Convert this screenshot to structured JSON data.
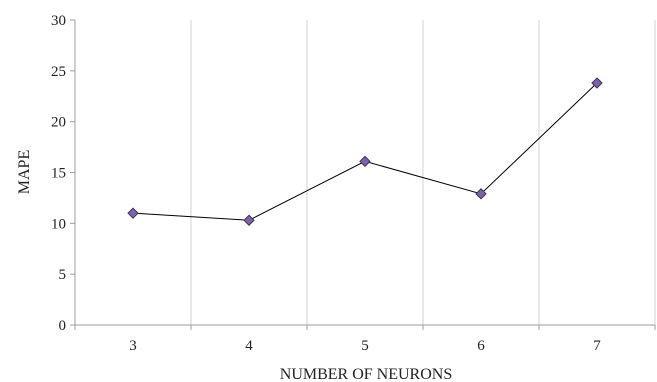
{
  "chart_data": {
    "type": "line",
    "title": "",
    "xlabel": "NUMBER OF NEURONS",
    "ylabel": "MAPE",
    "categories": [
      "3",
      "4",
      "5",
      "6",
      "7"
    ],
    "series": [
      {
        "values": [
          11.0,
          10.3,
          16.1,
          12.9,
          23.8
        ]
      }
    ],
    "ylim": [
      0,
      30
    ],
    "yticks": [
      "0",
      "5",
      "10",
      "15",
      "20",
      "25",
      "30"
    ],
    "grid": "vertical",
    "legend": "none",
    "colors": {
      "line": "#000000",
      "marker_fill": "#7b64a8",
      "marker_stroke": "#3d2f5c",
      "grid": "#d0d0d0",
      "axis": "#9e9e9e"
    }
  }
}
